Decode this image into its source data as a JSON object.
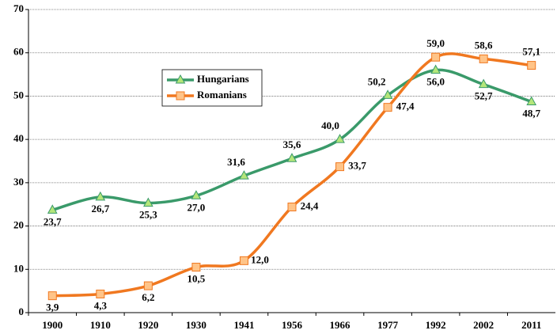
{
  "chart_data": {
    "type": "line",
    "categories": [
      "1900",
      "1910",
      "1920",
      "1930",
      "1941",
      "1956",
      "1966",
      "1977",
      "1992",
      "2002",
      "2011"
    ],
    "series": [
      {
        "name": "Hungarians",
        "color": "#3a9a6a",
        "marker": "triangle",
        "marker_fill": "#b4e67a",
        "values": [
          23.7,
          26.7,
          25.3,
          27.0,
          31.6,
          35.6,
          40.0,
          50.2,
          56.0,
          52.7,
          48.7
        ],
        "value_labels": [
          "23,7",
          "26,7",
          "25,3",
          "27,0",
          "31,6",
          "35,6",
          "40,0",
          "50,2",
          "56,0",
          "52,7",
          "48,7"
        ]
      },
      {
        "name": "Romanians",
        "color": "#f07820",
        "marker": "square",
        "marker_fill": "#ffc488",
        "values": [
          3.9,
          4.3,
          6.2,
          10.5,
          12.0,
          24.4,
          33.7,
          47.4,
          59.0,
          58.6,
          57.1
        ],
        "value_labels": [
          "3,9",
          "4,3",
          "6,2",
          "10,5",
          "12,0",
          "24,4",
          "33,7",
          "47,4",
          "59,0",
          "58,6",
          "57,1"
        ]
      }
    ],
    "ylim": [
      0,
      70
    ],
    "yticks": [
      0,
      10,
      20,
      30,
      40,
      50,
      60,
      70
    ],
    "grid": true,
    "legend": true,
    "smooth": true
  }
}
